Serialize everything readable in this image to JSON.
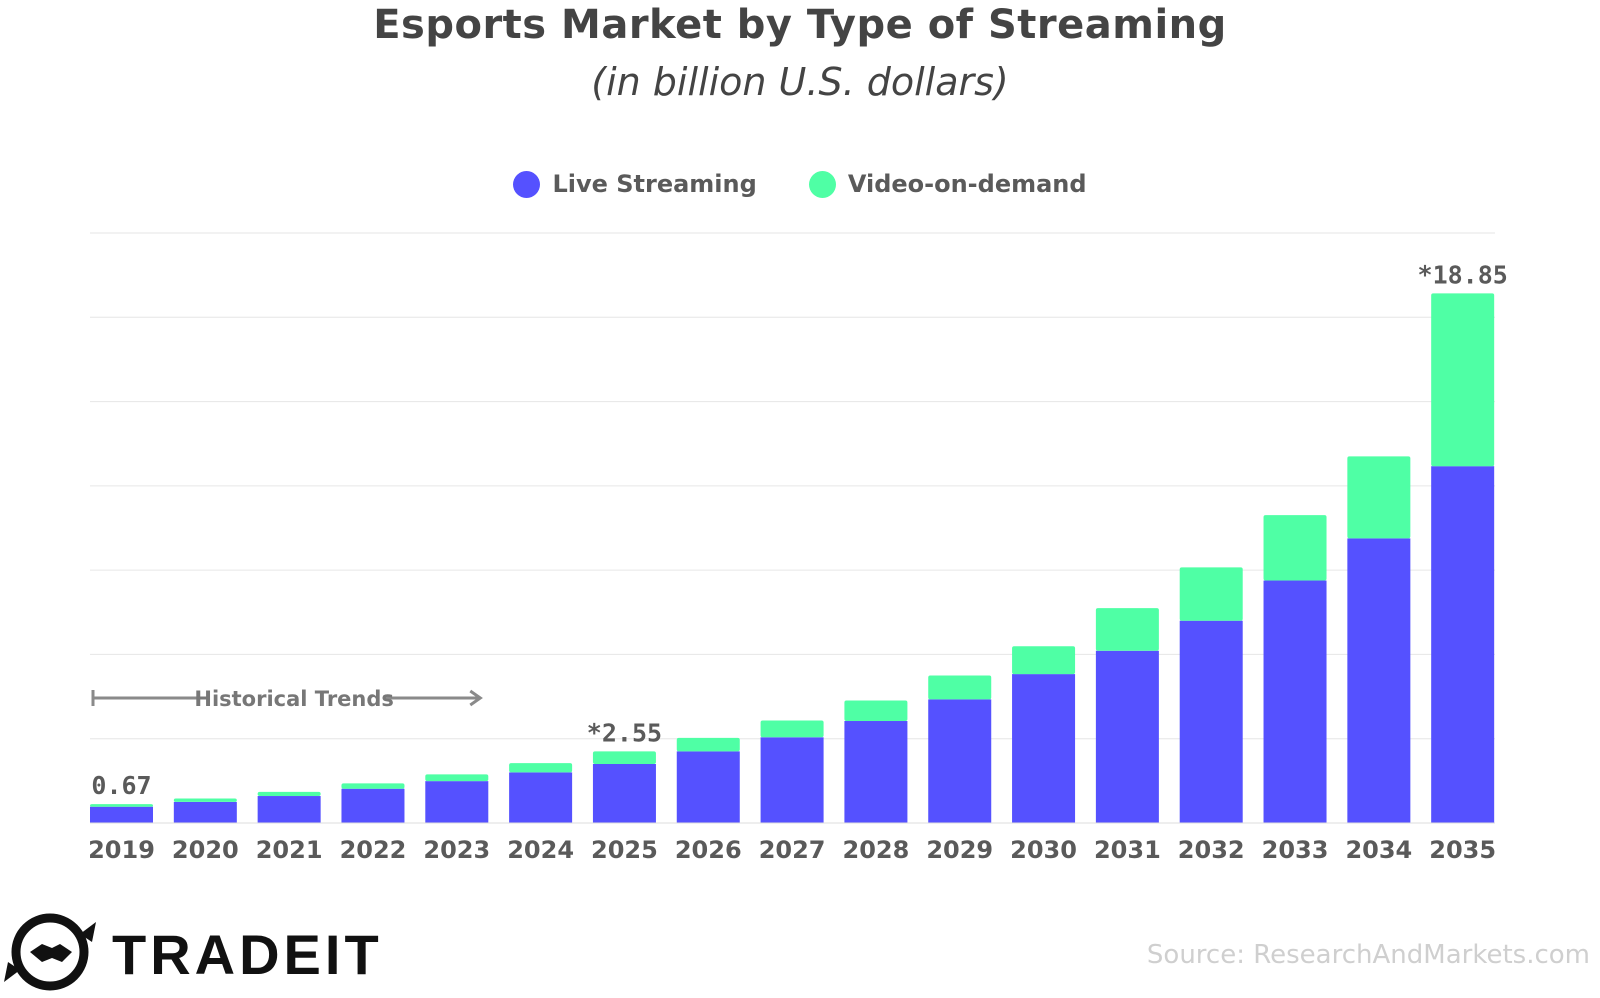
{
  "chart_data": {
    "type": "bar",
    "stacked": true,
    "title": "Esports Market by Type of Streaming",
    "subtitle": "(in billion U.S. dollars)",
    "categories": [
      "2019",
      "2020",
      "2021",
      "2022",
      "2023",
      "2024",
      "2025",
      "2026",
      "2027",
      "2028",
      "2029",
      "2030",
      "2031",
      "2032",
      "2033",
      "2034",
      "2035"
    ],
    "series": [
      {
        "name": "Live Streaming",
        "color": "#5551ff",
        "values": [
          0.58,
          0.75,
          0.96,
          1.22,
          1.49,
          1.8,
          2.1,
          2.55,
          3.05,
          3.63,
          4.4,
          5.3,
          6.13,
          7.2,
          8.63,
          10.13,
          12.7
        ]
      },
      {
        "name": "Video-on-demand",
        "color": "#4fffa5",
        "values": [
          0.09,
          0.12,
          0.15,
          0.19,
          0.24,
          0.33,
          0.45,
          0.48,
          0.6,
          0.73,
          0.85,
          0.99,
          1.52,
          1.9,
          2.33,
          2.92,
          6.15
        ]
      }
    ],
    "ylim": [
      0,
      21
    ],
    "ygrid": [
      0,
      3,
      6,
      9,
      12,
      15,
      18,
      21
    ],
    "xlabel": "",
    "ylabel": "",
    "data_labels": [
      {
        "category": "2019",
        "text": "0.67"
      },
      {
        "category": "2025",
        "text": "*2.55"
      },
      {
        "category": "2035",
        "text": "*18.85"
      }
    ],
    "annotations": [
      {
        "text": "Historical Trends",
        "from": "2019",
        "to": "2023"
      }
    ]
  },
  "legend": [
    {
      "label": "Live Streaming",
      "color": "#5551ff"
    },
    {
      "label": "Video-on-demand",
      "color": "#4fffa5"
    }
  ],
  "branding": {
    "logo_text": "TRADEIT",
    "logo_icon": "handshake-icon"
  },
  "source": "Source: ResearchAndMarkets.com"
}
